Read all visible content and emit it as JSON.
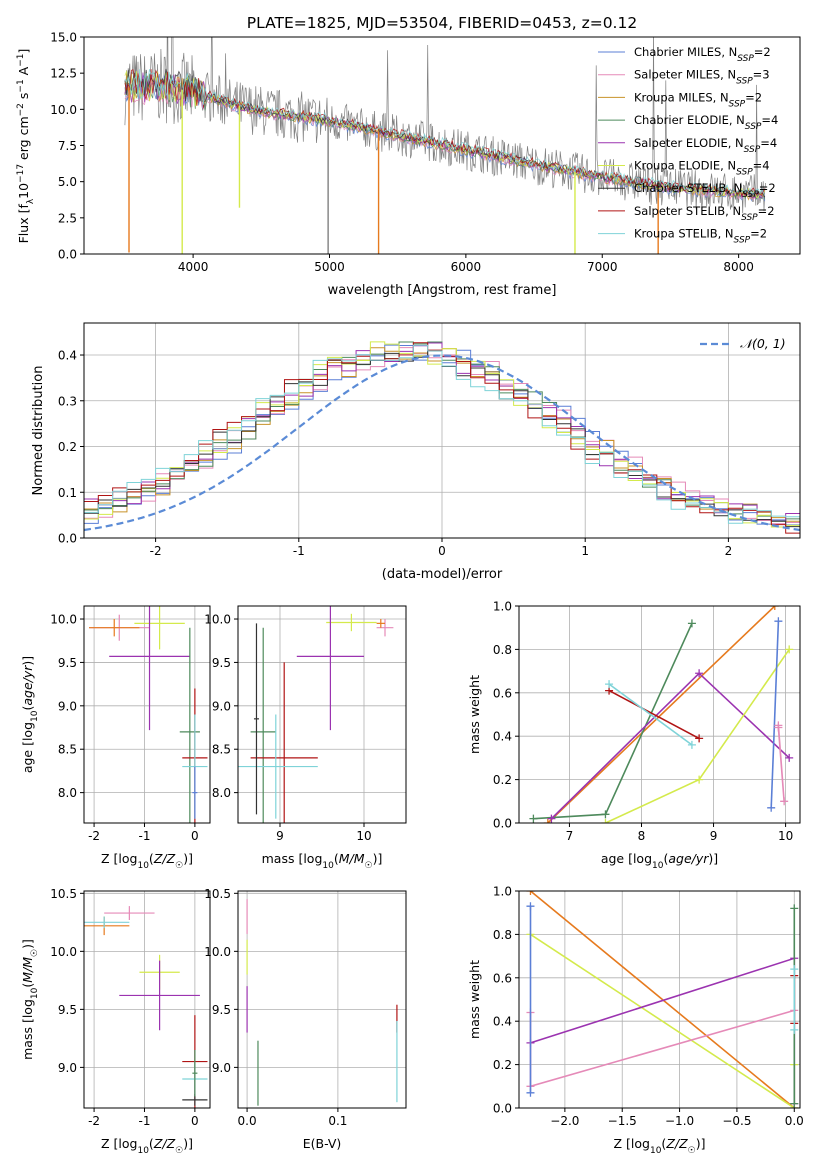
{
  "figure_title": "PLATE=1825, MJD=53504, FIBERID=0453, z=0.12",
  "colors": {
    "Chabrier MILES": "#5b7fd6",
    "Salpeter MILES": "#e58ab8",
    "Kroupa MILES": "#c8922a",
    "Chabrier ELODIE": "#4e8a5c",
    "Salpeter ELODIE": "#9b33b0",
    "Kroupa ELODIE": "#d4ea4c",
    "Chabrier STELIB": "#333333",
    "Salpeter STELIB": "#b01414",
    "Kroupa STELIB": "#7fd3d8",
    "data": "#808080",
    "orange": "#e67a1e",
    "normal": "#5b8bd6"
  },
  "chart_data": [
    {
      "id": "spectrum",
      "type": "line",
      "title": "PLATE=1825, MJD=53504, FIBERID=0453, z=0.12",
      "xlabel": "wavelength [Angstrom, rest frame]",
      "ylabel": "Flux [f_λ 10⁻¹⁷ erg cm⁻² s⁻¹ A⁻¹]",
      "xlim": [
        3200,
        8450
      ],
      "ylim": [
        0,
        15
      ],
      "xticks": [
        4000,
        5000,
        6000,
        7000,
        8000
      ],
      "yticks": [
        0.0,
        2.5,
        5.0,
        7.5,
        10.0,
        12.5,
        15.0
      ],
      "legend_position": "top-right",
      "legend": [
        {
          "label": "Chabrier MILES, N",
          "sub": "SSP",
          "suffix": "=2",
          "color": "#5b7fd6"
        },
        {
          "label": "Salpeter MILES, N",
          "sub": "SSP",
          "suffix": "=3",
          "color": "#e58ab8"
        },
        {
          "label": "Kroupa MILES, N",
          "sub": "SSP",
          "suffix": "=2",
          "color": "#c8922a"
        },
        {
          "label": "Chabrier ELODIE, N",
          "sub": "SSP",
          "suffix": "=4",
          "color": "#4e8a5c"
        },
        {
          "label": "Salpeter ELODIE, N",
          "sub": "SSP",
          "suffix": "=4",
          "color": "#9b33b0"
        },
        {
          "label": "Kroupa ELODIE, N",
          "sub": "SSP",
          "suffix": "=4",
          "color": "#d4ea4c"
        },
        {
          "label": "Chabrier STELIB, N",
          "sub": "SSP",
          "suffix": "=2",
          "color": "#333333"
        },
        {
          "label": "Salpeter STELIB, N",
          "sub": "SSP",
          "suffix": "=2",
          "color": "#b01414"
        },
        {
          "label": "Kroupa STELIB, N",
          "sub": "SSP",
          "suffix": "=2",
          "color": "#7fd3d8"
        }
      ],
      "continuum": [
        [
          3500,
          11.5
        ],
        [
          3800,
          11.6
        ],
        [
          4000,
          11.2
        ],
        [
          4300,
          10.3
        ],
        [
          4600,
          9.7
        ],
        [
          5000,
          9.2
        ],
        [
          5500,
          8.2
        ],
        [
          6000,
          7.2
        ],
        [
          6500,
          6.2
        ],
        [
          7000,
          5.3
        ],
        [
          7500,
          4.6
        ],
        [
          8000,
          4.2
        ],
        [
          8200,
          4.1
        ]
      ],
      "spikes": [
        {
          "x": 3530,
          "y": 0.1,
          "color": "#e67a1e"
        },
        {
          "x": 3920,
          "y": 0.0,
          "color": "#d4ea4c"
        },
        {
          "x": 4340,
          "y": 3.2,
          "color": "#d4ea4c"
        },
        {
          "x": 4990,
          "y": 0.0,
          "color": "#808080"
        },
        {
          "x": 5360,
          "y": 0.0,
          "color": "#e67a1e"
        },
        {
          "x": 6800,
          "y": 0.0,
          "color": "#d4ea4c"
        },
        {
          "x": 7410,
          "y": 0.0,
          "color": "#e67a1e"
        }
      ]
    },
    {
      "id": "residuals",
      "type": "histogram",
      "xlabel": "(data-model)/error",
      "ylabel": "Normed distribution",
      "xlim": [
        -2.5,
        2.5
      ],
      "ylim": [
        0,
        0.47
      ],
      "xticks": [
        -2,
        -1,
        0,
        1,
        2
      ],
      "yticks": [
        0.0,
        0.1,
        0.2,
        0.3,
        0.4
      ],
      "grid": true,
      "legend_position": "top-right",
      "legend": [
        {
          "label": "𝒩(0, 1)",
          "color": "#5b8bd6",
          "style": "dashed"
        }
      ],
      "bin_edges_from": -2.5,
      "bin_width": 0.1
    },
    {
      "id": "age-vs-Z",
      "type": "errorbar",
      "xlabel": "Z [log₁₀(Z/Z☉)]",
      "ylabel": "age  [log₁₀(age/yr)]",
      "xlim": [
        -2.2,
        0.3
      ],
      "ylim": [
        7.65,
        10.15
      ],
      "xticks": [
        -2,
        -1,
        0
      ],
      "yticks": [
        8.0,
        8.5,
        9.0,
        9.5,
        10.0
      ],
      "grid": true,
      "points": [
        {
          "x": -1.5,
          "y": 9.9,
          "xerr": 0.6,
          "yerr": 0.15,
          "color": "#e58ab8"
        },
        {
          "x": -1.6,
          "y": 9.9,
          "xerr": 0.5,
          "yerr": 0.1,
          "color": "#e67a1e"
        },
        {
          "x": -0.7,
          "y": 9.95,
          "xerr": 0.5,
          "yerr": 0.3,
          "color": "#d4ea4c"
        },
        {
          "x": -0.9,
          "y": 9.57,
          "xerr": 0.8,
          "yerr": 0.85,
          "color": "#9b33b0"
        },
        {
          "x": -0.1,
          "y": 8.7,
          "xerr": 0.2,
          "yerr": 1.2,
          "color": "#4e8a5c"
        },
        {
          "x": 0.0,
          "y": 8.4,
          "xerr": 0.25,
          "yerr": 0.8,
          "color": "#b01414"
        },
        {
          "x": 0.0,
          "y": 8.3,
          "xerr": 0.25,
          "yerr": 0.6,
          "color": "#7fd3d8"
        },
        {
          "x": 0.0,
          "y": 8.0,
          "xerr": 0.05,
          "yerr": 0.3,
          "color": "#5b7fd6"
        }
      ]
    },
    {
      "id": "age-vs-mass",
      "type": "errorbar",
      "xlabel": "mass [log₁₀(M/M☉)]",
      "ylabel": "",
      "xlim": [
        8.5,
        10.5
      ],
      "ylim": [
        7.65,
        10.15
      ],
      "xticks": [
        9,
        10
      ],
      "yticks": [
        8.0,
        8.5,
        9.0,
        9.5,
        10.0
      ],
      "grid": true,
      "points": [
        {
          "x": 9.85,
          "y": 9.96,
          "xerr": 0.3,
          "yerr": 0.1,
          "color": "#d4ea4c"
        },
        {
          "x": 10.25,
          "y": 9.9,
          "xerr": 0.1,
          "yerr": 0.1,
          "color": "#e58ab8"
        },
        {
          "x": 10.2,
          "y": 9.95,
          "xerr": 0.05,
          "yerr": 0.05,
          "color": "#e67a1e"
        },
        {
          "x": 9.6,
          "y": 9.57,
          "xerr": 0.4,
          "yerr": 0.85,
          "color": "#9b33b0"
        },
        {
          "x": 8.8,
          "y": 8.7,
          "xerr": 0.15,
          "yerr": 1.2,
          "color": "#4e8a5c"
        },
        {
          "x": 9.05,
          "y": 8.4,
          "xerr": 0.4,
          "yerr": 1.1,
          "color": "#b01414"
        },
        {
          "x": 8.95,
          "y": 8.3,
          "xerr": 0.5,
          "yerr": 0.6,
          "color": "#7fd3d8"
        },
        {
          "x": 8.72,
          "y": 8.85,
          "xerr": 0.03,
          "yerr": 1.1,
          "color": "#333333"
        }
      ]
    },
    {
      "id": "weight-vs-age",
      "type": "line",
      "xlabel": "age  [log₁₀(age/yr)]",
      "ylabel": "mass weight",
      "xlim": [
        6.3,
        10.2
      ],
      "ylim": [
        0.0,
        1.0
      ],
      "xticks": [
        7,
        8,
        9,
        10
      ],
      "yticks": [
        0.0,
        0.2,
        0.4,
        0.6,
        0.8,
        1.0
      ],
      "grid": true,
      "series": [
        {
          "color": "#e67a1e",
          "x": [
            6.7,
            9.85
          ],
          "y": [
            0.0,
            1.0
          ]
        },
        {
          "color": "#4e8a5c",
          "x": [
            6.5,
            7.5,
            8.7
          ],
          "y": [
            0.02,
            0.04,
            0.92
          ]
        },
        {
          "color": "#9b33b0",
          "x": [
            6.75,
            8.8,
            10.05
          ],
          "y": [
            0.02,
            0.69,
            0.3
          ]
        },
        {
          "color": "#d4ea4c",
          "x": [
            7.5,
            8.8,
            10.05
          ],
          "y": [
            0.0,
            0.2,
            0.8
          ]
        },
        {
          "color": "#b01414",
          "x": [
            7.55,
            8.8
          ],
          "y": [
            0.61,
            0.39
          ]
        },
        {
          "color": "#7fd3d8",
          "x": [
            7.55,
            8.7
          ],
          "y": [
            0.64,
            0.36
          ]
        },
        {
          "color": "#5b7fd6",
          "x": [
            9.8,
            9.9
          ],
          "y": [
            0.07,
            0.93
          ]
        },
        {
          "color": "#e58ab8",
          "x": [
            9.9,
            9.98,
            9.9
          ],
          "y": [
            0.45,
            0.1,
            0.44
          ]
        }
      ]
    },
    {
      "id": "mass-vs-Z",
      "type": "errorbar",
      "xlabel": "Z [log₁₀(Z/Z☉)]",
      "ylabel": "mass [log₁₀(M/M☉)]",
      "xlim": [
        -2.2,
        0.3
      ],
      "ylim": [
        8.65,
        10.52
      ],
      "xticks": [
        -2,
        -1,
        0
      ],
      "yticks": [
        9.0,
        9.5,
        10.0,
        10.5
      ],
      "grid": true,
      "points": [
        {
          "x": -1.3,
          "y": 10.33,
          "xerr": 0.5,
          "yerr": 0.06,
          "color": "#e58ab8"
        },
        {
          "x": -1.8,
          "y": 10.22,
          "xerr": 0.5,
          "yerr": 0.08,
          "color": "#e67a1e"
        },
        {
          "x": -1.8,
          "y": 10.25,
          "xerr": 0.5,
          "yerr": 0.05,
          "color": "#7fd3d8"
        },
        {
          "x": -0.7,
          "y": 9.82,
          "xerr": 0.4,
          "yerr": 0.15,
          "color": "#d4ea4c"
        },
        {
          "x": -0.7,
          "y": 9.62,
          "xerr": 0.8,
          "yerr": 0.3,
          "color": "#9b33b0"
        },
        {
          "x": 0.0,
          "y": 9.05,
          "xerr": 0.25,
          "yerr": 0.4,
          "color": "#b01414"
        },
        {
          "x": 0.0,
          "y": 8.9,
          "xerr": 0.25,
          "yerr": 0.15,
          "color": "#7fd3d8"
        },
        {
          "x": 0.0,
          "y": 8.72,
          "xerr": 0.25,
          "yerr": 0.05,
          "color": "#333333"
        },
        {
          "x": 0.0,
          "y": 8.95,
          "xerr": 0.05,
          "yerr": 0.2,
          "color": "#4e8a5c"
        }
      ]
    },
    {
      "id": "mass-vs-EBV",
      "type": "errorbar",
      "xlabel": "E(B-V)",
      "ylabel": "",
      "xlim": [
        -0.01,
        0.175
      ],
      "ylim": [
        8.65,
        10.52
      ],
      "xticks": [
        0.0,
        0.1
      ],
      "yticks": [
        9.0,
        9.5,
        10.0,
        10.5
      ],
      "grid": true,
      "points": [
        {
          "x": 0.0,
          "y": 10.3,
          "xerr": 0,
          "yerr": 0.15,
          "color": "#e58ab8"
        },
        {
          "x": 0.0,
          "y": 9.95,
          "xerr": 0,
          "yerr": 0.15,
          "color": "#d4ea4c"
        },
        {
          "x": 0.0,
          "y": 9.5,
          "xerr": 0,
          "yerr": 0.2,
          "color": "#9b33b0"
        },
        {
          "x": 0.012,
          "y": 8.95,
          "xerr": 0,
          "yerr": 0.28,
          "color": "#4e8a5c"
        },
        {
          "x": 0.165,
          "y": 9.42,
          "xerr": 0,
          "yerr": 0.12,
          "color": "#b01414"
        },
        {
          "x": 0.165,
          "y": 9.05,
          "xerr": 0,
          "yerr": 0.35,
          "color": "#7fd3d8"
        }
      ]
    },
    {
      "id": "weight-vs-Z",
      "type": "line",
      "xlabel": "Z [log₁₀(Z/Z☉)]",
      "ylabel": "mass weight",
      "xlim": [
        -2.4,
        0.05
      ],
      "ylim": [
        0.0,
        1.0
      ],
      "xticks": [
        -2.0,
        -1.5,
        -1.0,
        -0.5,
        0.0
      ],
      "yticks": [
        0.0,
        0.2,
        0.4,
        0.6,
        0.8,
        1.0
      ],
      "grid": true,
      "series": [
        {
          "color": "#e67a1e",
          "x": [
            -2.3,
            0.0
          ],
          "y": [
            1.0,
            0.0
          ]
        },
        {
          "color": "#d4ea4c",
          "x": [
            -2.3,
            0.0,
            0.0
          ],
          "y": [
            0.8,
            0.0,
            0.2
          ]
        },
        {
          "color": "#9b33b0",
          "x": [
            -2.3,
            0.0,
            0.0
          ],
          "y": [
            0.3,
            0.69,
            0.02
          ]
        },
        {
          "color": "#e58ab8",
          "x": [
            -2.3,
            -2.3,
            0.0
          ],
          "y": [
            0.44,
            0.1,
            0.45
          ]
        },
        {
          "color": "#5b7fd6",
          "x": [
            -2.3,
            -2.3
          ],
          "y": [
            0.07,
            0.93
          ]
        },
        {
          "color": "#4e8a5c",
          "x": [
            0.0,
            0.0
          ],
          "y": [
            0.02,
            0.92
          ]
        },
        {
          "color": "#b01414",
          "x": [
            0.0,
            0.0
          ],
          "y": [
            0.39,
            0.61
          ]
        },
        {
          "color": "#7fd3d8",
          "x": [
            0.0,
            0.0
          ],
          "y": [
            0.36,
            0.64
          ]
        }
      ]
    }
  ]
}
